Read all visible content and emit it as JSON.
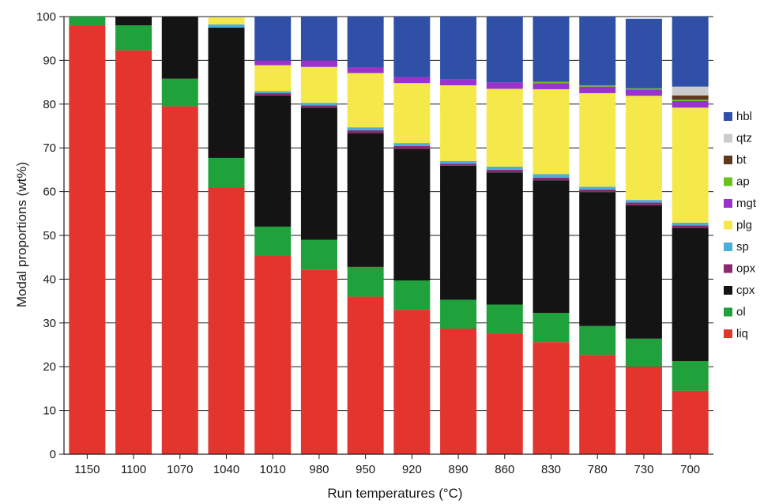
{
  "chart_data": {
    "type": "bar",
    "stacked": true,
    "title": "",
    "xlabel": "Run temperatures (°C)",
    "ylabel": "Modal proportions (wt%)",
    "ylim": [
      0,
      100
    ],
    "yticks": [
      "0",
      "10",
      "20",
      "30",
      "40",
      "50",
      "60",
      "70",
      "80",
      "90",
      "100"
    ],
    "grid": "horizontal",
    "legend_position": "right",
    "categories": [
      "1150",
      "1100",
      "1070",
      "1040",
      "1010",
      "980",
      "950",
      "920",
      "890",
      "860",
      "830",
      "780",
      "730",
      "700"
    ],
    "series": [
      {
        "name": "liq",
        "color": "#e3342d",
        "values": [
          98,
          92.3,
          79.5,
          61,
          45.3,
          42.2,
          36,
          33,
          28.7,
          27.6,
          25.6,
          22.7,
          20,
          14.5
        ]
      },
      {
        "name": "ol",
        "color": "#1fa23c",
        "values": [
          2,
          5.7,
          6.3,
          6.7,
          6.7,
          6.8,
          6.8,
          6.7,
          6.6,
          6.6,
          6.7,
          6.6,
          6.4,
          6.8
        ]
      },
      {
        "name": "cpx",
        "color": "#141414",
        "values": [
          0,
          2,
          14.2,
          29.8,
          30,
          30.2,
          30.6,
          30.1,
          30.6,
          30.2,
          30.3,
          30.6,
          30.5,
          30.4
        ]
      },
      {
        "name": "opx",
        "color": "#8a2a6e",
        "values": [
          0,
          0,
          0,
          0,
          0.5,
          0.5,
          0.6,
          0.6,
          0.5,
          0.6,
          0.6,
          0.6,
          0.6,
          0.6
        ]
      },
      {
        "name": "sp",
        "color": "#4aaed8",
        "values": [
          0,
          0,
          0,
          0.7,
          0.5,
          0.6,
          0.7,
          0.7,
          0.6,
          0.7,
          0.8,
          0.6,
          0.6,
          0.6
        ]
      },
      {
        "name": "plg",
        "color": "#f5e84a",
        "values": [
          0,
          0,
          0,
          1.6,
          5.9,
          8.2,
          12.4,
          13.7,
          17.3,
          17.8,
          19.4,
          21.4,
          23.8,
          26.3
        ]
      },
      {
        "name": "mgt",
        "color": "#9933cc",
        "values": [
          0,
          0,
          0,
          0,
          1.1,
          1.5,
          1.2,
          1.4,
          1.3,
          1.5,
          1.4,
          1.5,
          1.4,
          1.5
        ]
      },
      {
        "name": "ap",
        "color": "#6bc21d",
        "values": [
          0,
          0,
          0,
          0,
          0,
          0,
          0,
          0,
          0,
          0,
          0.3,
          0.3,
          0.3,
          0.3
        ]
      },
      {
        "name": "bt",
        "color": "#5b3a1e",
        "values": [
          0,
          0,
          0,
          0,
          0,
          0,
          0,
          0,
          0,
          0,
          0,
          0,
          0,
          1
        ]
      },
      {
        "name": "qtz",
        "color": "#cccccc",
        "values": [
          0,
          0,
          0,
          0,
          0,
          0,
          0,
          0,
          0,
          0,
          0,
          0,
          0,
          2
        ]
      },
      {
        "name": "hbl",
        "color": "#3050a8",
        "values": [
          0,
          0,
          0,
          0,
          10,
          10,
          11.7,
          13.8,
          14.4,
          15,
          14.9,
          15.7,
          15.9,
          16
        ]
      }
    ]
  }
}
